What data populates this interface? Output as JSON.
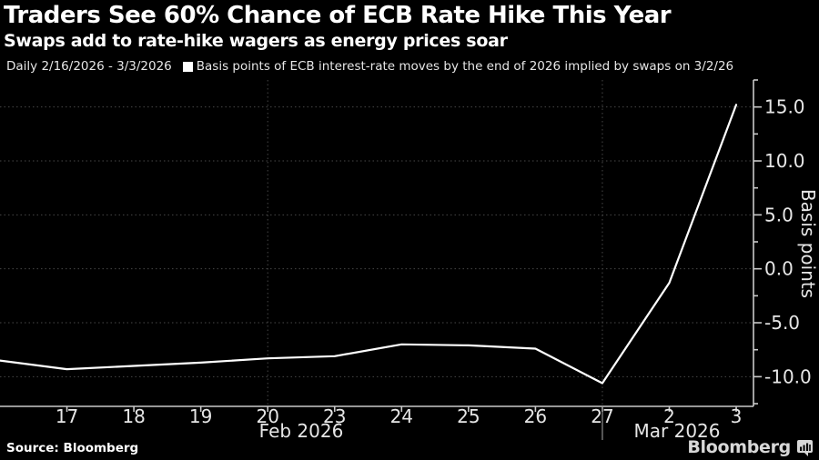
{
  "chart_data": {
    "type": "line",
    "title": "Traders See 60% Chance of ECB Rate Hike This Year",
    "subtitle": "Swaps add to rate-hike wagers as energy prices soar",
    "legend_range": "Daily 2/16/2026 - 3/3/2026",
    "series_label": "Basis points of ECB interest-rate moves by the end of 2026 implied by swaps on 3/2/26",
    "legend_marker_icon": "white-square-icon",
    "legend_position": "top",
    "categories": [
      "2/16",
      "2/17",
      "2/18",
      "2/19",
      "2/20",
      "2/23",
      "2/24",
      "2/25",
      "2/26",
      "2/27",
      "3/2",
      "3/3"
    ],
    "x_labels": [
      "",
      "17",
      "18",
      "19",
      "20",
      "23",
      "24",
      "25",
      "26",
      "27",
      "2",
      "3"
    ],
    "values": [
      -8.5,
      -9.3,
      -9.0,
      -8.7,
      -8.3,
      -8.1,
      -7.0,
      -7.1,
      -7.4,
      -10.6,
      -1.3,
      15.2
    ],
    "xlabel": "",
    "ylabel": "Basis points",
    "yticks": [
      15.0,
      10.0,
      5.0,
      0.0,
      -5.0,
      -10.0
    ],
    "yticks_minor": [
      17.5,
      12.5,
      7.5,
      2.5,
      -2.5,
      -7.5,
      -12.5
    ],
    "ylim": [
      -12.75,
      17.5
    ],
    "month_labels": [
      "Feb 2026",
      "Mar 2026"
    ],
    "vgrid_categories": [
      "2/20",
      "2/27"
    ],
    "month_separator_category": "2/27",
    "grid": true,
    "line_color": "#ffffff",
    "background_color": "#000000",
    "text_color": "#e6e6e6"
  },
  "footer": {
    "source": "Source: Bloomberg",
    "brand": "Bloomberg",
    "brand_icon": "bloomberg-chart-bubble-icon"
  }
}
